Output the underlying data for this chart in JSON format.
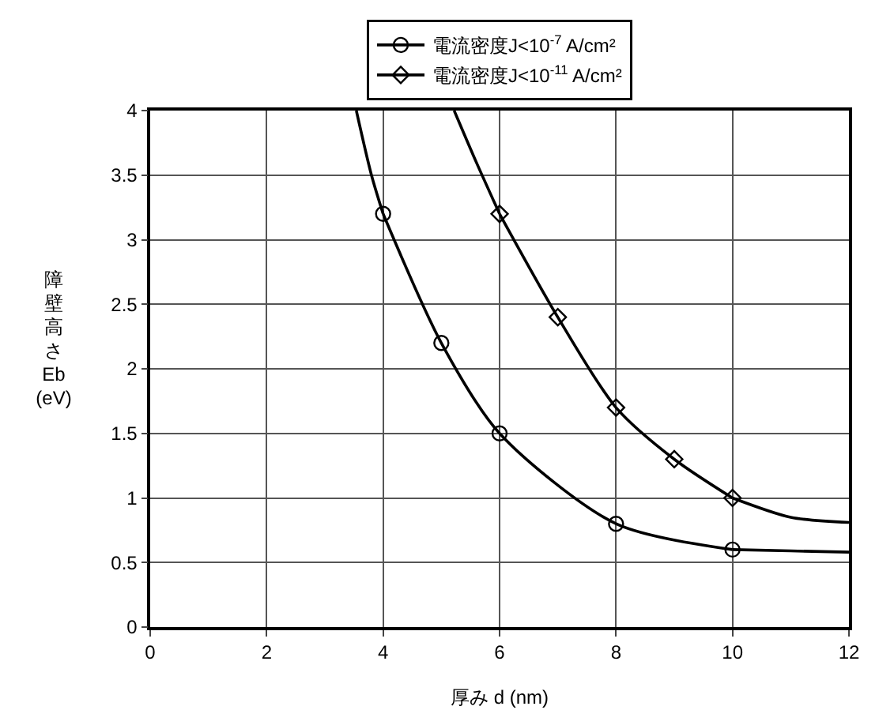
{
  "chart_data": {
    "type": "line",
    "xlabel": "厚み d (nm)",
    "ylabel": "障壁高さ Eb (eV)",
    "xlim": [
      0,
      12
    ],
    "xticks": [
      0,
      2,
      4,
      6,
      8,
      10,
      12
    ],
    "ylim": [
      0,
      4
    ],
    "yticks": [
      0,
      0.5,
      1,
      1.5,
      2,
      2.5,
      3,
      3.5,
      4
    ],
    "grid": true,
    "legend": "top",
    "line_style": "solid",
    "series": [
      {
        "name": "電流密度J<10$^{-7}$ A/cm²",
        "color": "#000000",
        "marker": "circle",
        "x": [
          4,
          5,
          6,
          8,
          10
        ],
        "values": [
          3.2,
          2.2,
          1.5,
          0.8,
          0.6
        ]
      },
      {
        "name": "電流密度J<10$^{-11}$ A/cm²",
        "color": "#000000",
        "marker": "diamond",
        "x": [
          6,
          7,
          8,
          9,
          10
        ],
        "values": [
          3.2,
          2.4,
          1.7,
          1.3,
          1.0
        ]
      },
      {
        "color": "#000000",
        "marker": "none",
        "x": [
          3.54,
          3.8,
          4
        ],
        "values": [
          4,
          3.5,
          3.2
        ]
      },
      {
        "color": "#000000",
        "marker": "none",
        "x": [
          10,
          11,
          12
        ],
        "values": [
          0.6,
          0.59,
          0.58
        ]
      },
      {
        "color": "#000000",
        "marker": "none",
        "x": [
          5.22,
          5.6,
          6
        ],
        "values": [
          4,
          3.6,
          3.2
        ]
      },
      {
        "color": "#000000",
        "marker": "none",
        "x": [
          10,
          11,
          12
        ],
        "values": [
          1.0,
          0.85,
          0.81
        ]
      }
    ]
  }
}
